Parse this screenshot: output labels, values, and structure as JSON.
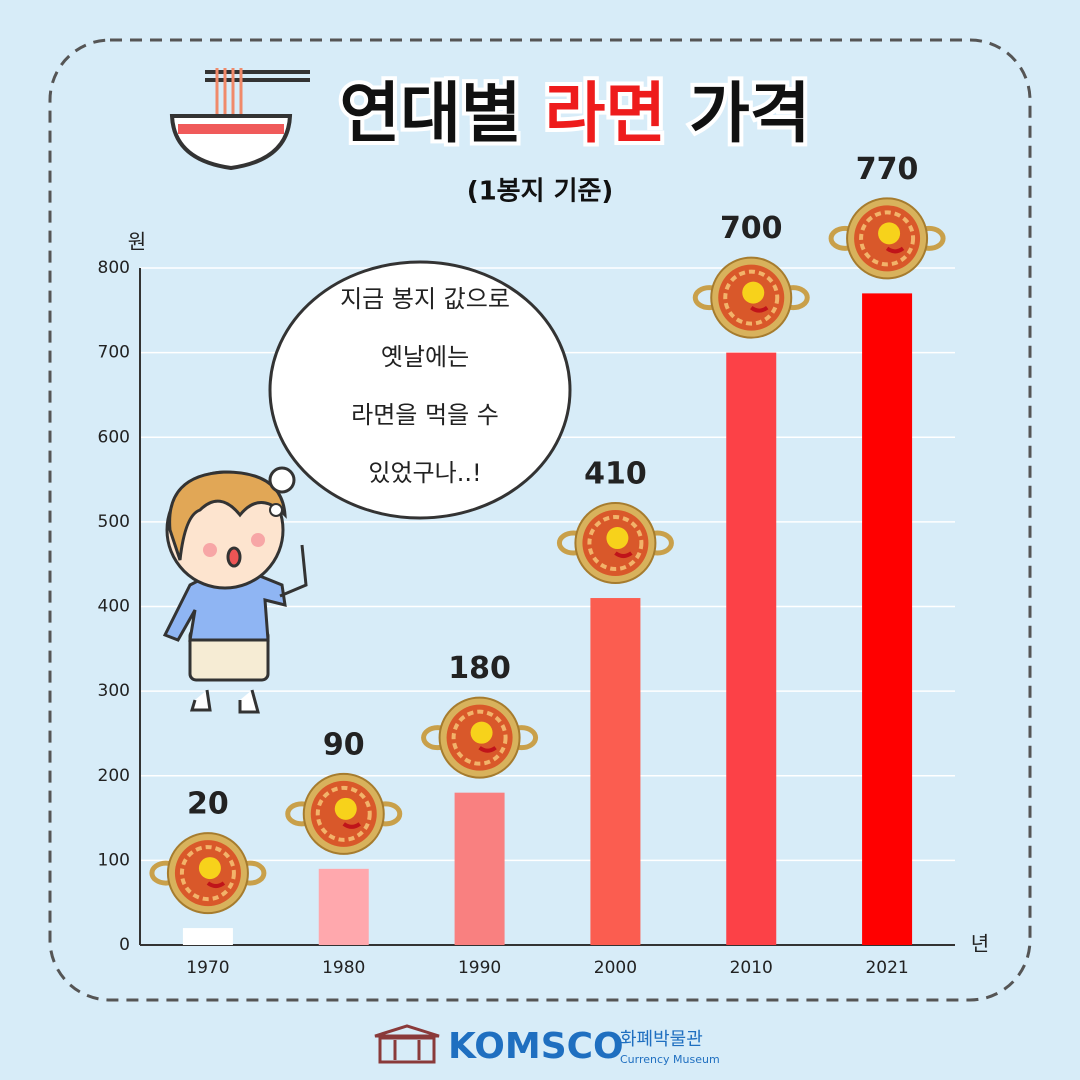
{
  "chart_data": {
    "type": "bar",
    "title": [
      "연대별",
      "라면",
      "가격"
    ],
    "subtitle": "(1봉지 기준)",
    "y_label": "원",
    "x_label": "년",
    "categories": [
      "1970",
      "1980",
      "1990",
      "2000",
      "2010",
      "2021"
    ],
    "values": [
      20,
      90,
      180,
      410,
      700,
      770
    ],
    "colors": [
      "#ffffff",
      "#ffa8ad",
      "#f98080",
      "#fb5d50",
      "#fc4147",
      "#ff0000"
    ],
    "ylim": [
      0,
      800
    ],
    "yticks": [
      0,
      100,
      200,
      300,
      400,
      500,
      600,
      700,
      800
    ],
    "grid": true
  },
  "speech_bubble": [
    "지금 봉지 값으로",
    "옛날에는",
    "라면을 먹을 수",
    "있었구나..!"
  ],
  "footer": {
    "logo": "KOMSCO",
    "name": "화폐박물관",
    "name_en": "Currency Museum"
  }
}
